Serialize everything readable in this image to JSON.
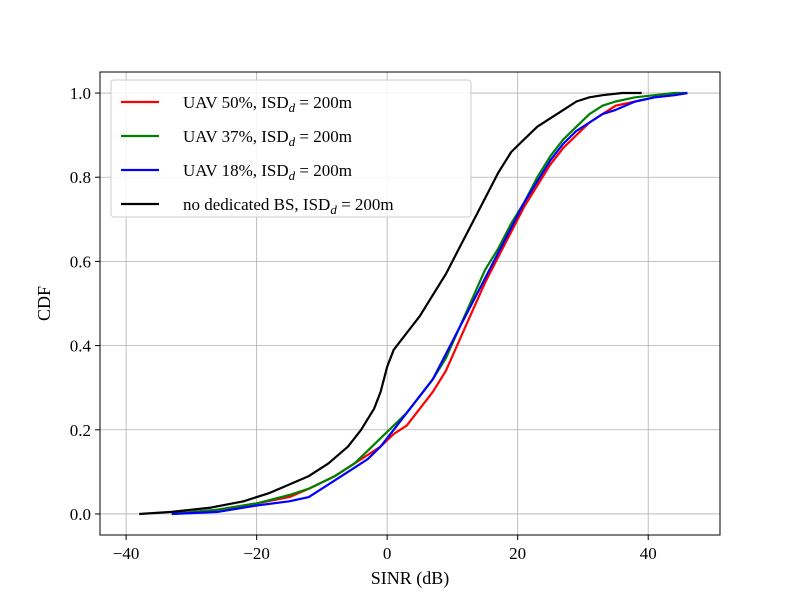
{
  "chart_data": {
    "type": "line",
    "title": "",
    "xlabel": "SINR (dB)",
    "ylabel": "CDF",
    "xlim": [
      -44,
      51
    ],
    "ylim": [
      -0.05,
      1.05
    ],
    "xticks": [
      -40,
      -20,
      0,
      20,
      40
    ],
    "xtick_labels": [
      "−40",
      "−20",
      "0",
      "20",
      "40"
    ],
    "yticks": [
      0.0,
      0.2,
      0.4,
      0.6,
      0.8,
      1.0
    ],
    "ytick_labels": [
      "0.0",
      "0.2",
      "0.4",
      "0.6",
      "0.8",
      "1.0"
    ],
    "grid": true,
    "legend_position": "top-left",
    "series": [
      {
        "name": "UAV 50%, ISD",
        "name_sub": "d",
        "name_suffix": " = 200m",
        "color": "#ff0000",
        "x": [
          -33,
          -26,
          -20,
          -15,
          -12,
          -8,
          -5,
          -3,
          -1,
          1,
          3,
          5,
          7,
          9,
          11,
          13,
          15,
          17,
          19,
          21,
          23,
          25,
          27,
          29,
          31,
          33,
          35,
          38,
          41,
          44,
          46
        ],
        "y": [
          0.0,
          0.01,
          0.025,
          0.04,
          0.06,
          0.09,
          0.12,
          0.14,
          0.16,
          0.19,
          0.21,
          0.25,
          0.29,
          0.34,
          0.41,
          0.48,
          0.55,
          0.61,
          0.67,
          0.73,
          0.78,
          0.83,
          0.87,
          0.9,
          0.93,
          0.95,
          0.97,
          0.98,
          0.99,
          0.995,
          1.0
        ]
      },
      {
        "name": "UAV 37%, ISD",
        "name_sub": "d",
        "name_suffix": " = 200m",
        "color": "#008000",
        "x": [
          -33,
          -26,
          -20,
          -15,
          -12,
          -8,
          -5,
          -3,
          -1,
          1,
          3,
          5,
          7,
          9,
          11,
          13,
          15,
          17,
          19,
          21,
          23,
          25,
          27,
          29,
          31,
          33,
          35,
          38,
          41,
          44,
          46
        ],
        "y": [
          0.0,
          0.01,
          0.025,
          0.045,
          0.06,
          0.09,
          0.12,
          0.15,
          0.18,
          0.21,
          0.24,
          0.28,
          0.32,
          0.37,
          0.44,
          0.51,
          0.58,
          0.63,
          0.69,
          0.74,
          0.8,
          0.85,
          0.89,
          0.92,
          0.95,
          0.97,
          0.98,
          0.99,
          0.995,
          1.0,
          1.0
        ]
      },
      {
        "name": "UAV 18%, ISD",
        "name_sub": "d",
        "name_suffix": " = 200m",
        "color": "#0000ff",
        "x": [
          -33,
          -26,
          -20,
          -15,
          -12,
          -8,
          -5,
          -3,
          -1,
          1,
          3,
          5,
          7,
          9,
          11,
          13,
          15,
          17,
          19,
          21,
          23,
          25,
          27,
          29,
          31,
          33,
          35,
          38,
          41,
          44,
          46
        ],
        "y": [
          0.0,
          0.005,
          0.02,
          0.03,
          0.04,
          0.08,
          0.11,
          0.13,
          0.16,
          0.2,
          0.24,
          0.28,
          0.32,
          0.38,
          0.44,
          0.5,
          0.56,
          0.62,
          0.68,
          0.74,
          0.79,
          0.84,
          0.88,
          0.91,
          0.93,
          0.95,
          0.96,
          0.98,
          0.99,
          0.995,
          1.0
        ]
      },
      {
        "name": "no dedicated BS, ISD",
        "name_sub": "d",
        "name_suffix": " = 200m",
        "color": "#000000",
        "x": [
          -38,
          -33,
          -27,
          -22,
          -18,
          -15,
          -12,
          -9,
          -6,
          -4,
          -2,
          -1,
          0,
          1,
          3,
          5,
          7,
          9,
          11,
          13,
          15,
          17,
          19,
          21,
          23,
          25,
          27,
          29,
          31,
          33,
          36,
          39
        ],
        "y": [
          0.0,
          0.005,
          0.015,
          0.03,
          0.05,
          0.07,
          0.09,
          0.12,
          0.16,
          0.2,
          0.25,
          0.29,
          0.35,
          0.39,
          0.43,
          0.47,
          0.52,
          0.57,
          0.63,
          0.69,
          0.75,
          0.81,
          0.86,
          0.89,
          0.92,
          0.94,
          0.96,
          0.98,
          0.99,
          0.995,
          1.0,
          1.0
        ]
      }
    ]
  }
}
